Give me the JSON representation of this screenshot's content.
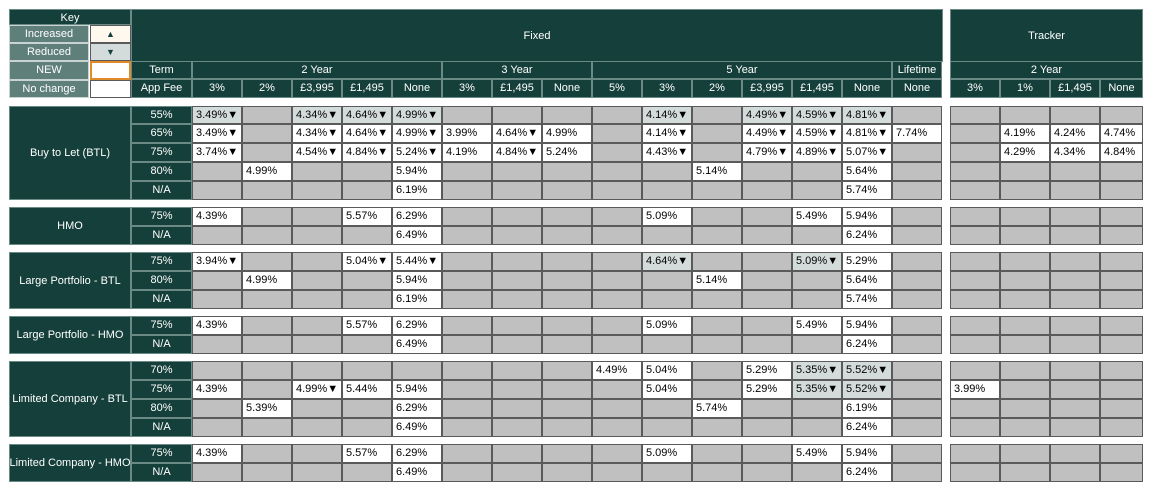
{
  "key": {
    "title": "Key",
    "items": [
      {
        "label": "Increased",
        "symbol": "▲"
      },
      {
        "label": "Reduced",
        "symbol": "▼"
      },
      {
        "label": "NEW",
        "symbol": ""
      },
      {
        "label": "No change",
        "symbol": ""
      }
    ]
  },
  "header": {
    "fixed": "Fixed",
    "tracker": "Tracker",
    "term_label": "Term",
    "fee_label": "App Fee",
    "terms": [
      {
        "label": "2 Year",
        "fees": [
          "3%",
          "2%",
          "£3,995",
          "£1,495",
          "None"
        ]
      },
      {
        "label": "3 Year",
        "fees": [
          "3%",
          "£1,495",
          "None"
        ]
      },
      {
        "label": "5 Year",
        "fees": [
          "5%",
          "3%",
          "2%",
          "£3,995",
          "£1,495",
          "None"
        ]
      },
      {
        "label": "Lifetime",
        "fees": [
          "None"
        ]
      }
    ],
    "tracker_terms": [
      {
        "label": "2 Year",
        "fees": [
          "3%",
          "1%",
          "£1,495",
          "None"
        ]
      }
    ]
  },
  "groups": [
    {
      "name": "Buy to Let (BTL)",
      "rows": [
        {
          "ltv": "55%",
          "fixed": [
            "3.49%▼",
            "",
            "4.34%▼",
            "4.64%▼",
            "4.99%▼",
            "",
            "",
            "",
            "",
            "4.14%▼",
            "",
            "4.49%▼",
            "4.59%▼",
            "4.81%▼",
            ""
          ],
          "tracker": [
            "",
            "",
            "",
            ""
          ]
        },
        {
          "ltv": "65%",
          "fixed": [
            "3.49%▼",
            "",
            "4.34%▼",
            "4.64%▼",
            "4.99%▼",
            "3.99%",
            "4.64%▼",
            "4.99%",
            "",
            "4.14%▼",
            "",
            "4.49%▼",
            "4.59%▼",
            "4.81%▼",
            "7.74%"
          ],
          "tracker": [
            "",
            "4.19%",
            "4.24%",
            "4.74%"
          ]
        },
        {
          "ltv": "75%",
          "fixed": [
            "3.74%▼",
            "",
            "4.54%▼",
            "4.84%▼",
            "5.24%▼",
            "4.19%",
            "4.84%▼",
            "5.24%",
            "",
            "4.43%▼",
            "",
            "4.79%▼",
            "4.89%▼",
            "5.07%▼",
            ""
          ],
          "tracker": [
            "",
            "4.29%",
            "4.34%",
            "4.84%"
          ]
        },
        {
          "ltv": "80%",
          "fixed": [
            "",
            "4.99%",
            "",
            "",
            "5.94%",
            "",
            "",
            "",
            "",
            "",
            "5.14%",
            "",
            "",
            "5.64%",
            ""
          ],
          "tracker": [
            "",
            "",
            "",
            ""
          ]
        },
        {
          "ltv": "N/A",
          "fixed": [
            "",
            "",
            "",
            "",
            "6.19%",
            "",
            "",
            "",
            "",
            "",
            "",
            "",
            "",
            "5.74%",
            ""
          ],
          "tracker": [
            "",
            "",
            "",
            ""
          ]
        }
      ]
    },
    {
      "name": "HMO",
      "rows": [
        {
          "ltv": "75%",
          "fixed": [
            "4.39%",
            "",
            "",
            "5.57%",
            "6.29%",
            "",
            "",
            "",
            "",
            "5.09%",
            "",
            "",
            "5.49%",
            "5.94%",
            ""
          ],
          "tracker": [
            "",
            "",
            "",
            ""
          ]
        },
        {
          "ltv": "N/A",
          "fixed": [
            "",
            "",
            "",
            "",
            "6.49%",
            "",
            "",
            "",
            "",
            "",
            "",
            "",
            "",
            "6.24%",
            ""
          ],
          "tracker": [
            "",
            "",
            "",
            ""
          ]
        }
      ]
    },
    {
      "name": "Large Portfolio - BTL",
      "rows": [
        {
          "ltv": "75%",
          "fixed": [
            "3.94%▼",
            "",
            "",
            "5.04%▼",
            "5.44%▼",
            "",
            "",
            "",
            "",
            "4.64%▼",
            "",
            "",
            "5.09%▼",
            "5.29%",
            ""
          ],
          "tracker": [
            "",
            "",
            "",
            ""
          ]
        },
        {
          "ltv": "80%",
          "fixed": [
            "",
            "4.99%",
            "",
            "",
            "5.94%",
            "",
            "",
            "",
            "",
            "",
            "5.14%",
            "",
            "",
            "5.64%",
            ""
          ],
          "tracker": [
            "",
            "",
            "",
            ""
          ]
        },
        {
          "ltv": "N/A",
          "fixed": [
            "",
            "",
            "",
            "",
            "6.19%",
            "",
            "",
            "",
            "",
            "",
            "",
            "",
            "",
            "5.74%",
            ""
          ],
          "tracker": [
            "",
            "",
            "",
            ""
          ]
        }
      ]
    },
    {
      "name": "Large Portfolio - HMO",
      "rows": [
        {
          "ltv": "75%",
          "fixed": [
            "4.39%",
            "",
            "",
            "5.57%",
            "6.29%",
            "",
            "",
            "",
            "",
            "5.09%",
            "",
            "",
            "5.49%",
            "5.94%",
            ""
          ],
          "tracker": [
            "",
            "",
            "",
            ""
          ]
        },
        {
          "ltv": "N/A",
          "fixed": [
            "",
            "",
            "",
            "",
            "6.49%",
            "",
            "",
            "",
            "",
            "",
            "",
            "",
            "",
            "6.24%",
            ""
          ],
          "tracker": [
            "",
            "",
            "",
            ""
          ]
        }
      ]
    },
    {
      "name": "Limited Company - BTL",
      "rows": [
        {
          "ltv": "70%",
          "fixed": [
            "",
            "",
            "",
            "",
            "",
            "",
            "",
            "",
            "4.49%",
            "5.04%",
            "",
            "5.29%",
            "5.35%▼",
            "5.52%▼",
            ""
          ],
          "tracker": [
            "",
            "",
            "",
            ""
          ]
        },
        {
          "ltv": "75%",
          "fixed": [
            "4.39%",
            "",
            "4.99%▼",
            "5.44%",
            "5.94%",
            "",
            "",
            "",
            "",
            "5.04%",
            "",
            "5.29%",
            "5.35%▼",
            "5.52%▼",
            ""
          ],
          "tracker": [
            "3.99%",
            "",
            "",
            ""
          ]
        },
        {
          "ltv": "80%",
          "fixed": [
            "",
            "5.39%",
            "",
            "",
            "6.29%",
            "",
            "",
            "",
            "",
            "",
            "5.74%",
            "",
            "",
            "6.19%",
            ""
          ],
          "tracker": [
            "",
            "",
            "",
            ""
          ]
        },
        {
          "ltv": "N/A",
          "fixed": [
            "",
            "",
            "",
            "",
            "6.49%",
            "",
            "",
            "",
            "",
            "",
            "",
            "",
            "",
            "6.24%",
            ""
          ],
          "tracker": [
            "",
            "",
            "",
            ""
          ]
        }
      ]
    },
    {
      "name": "Limited Company - HMO",
      "rows": [
        {
          "ltv": "75%",
          "fixed": [
            "4.39%",
            "",
            "",
            "5.57%",
            "6.29%",
            "",
            "",
            "",
            "",
            "5.09%",
            "",
            "",
            "5.49%",
            "5.94%",
            ""
          ],
          "tracker": [
            "",
            "",
            "",
            ""
          ]
        },
        {
          "ltv": "N/A",
          "fixed": [
            "",
            "",
            "",
            "",
            "6.49%",
            "",
            "",
            "",
            "",
            "",
            "",
            "",
            "",
            "6.24%",
            ""
          ],
          "tracker": [
            "",
            "",
            "",
            ""
          ]
        }
      ]
    }
  ]
}
